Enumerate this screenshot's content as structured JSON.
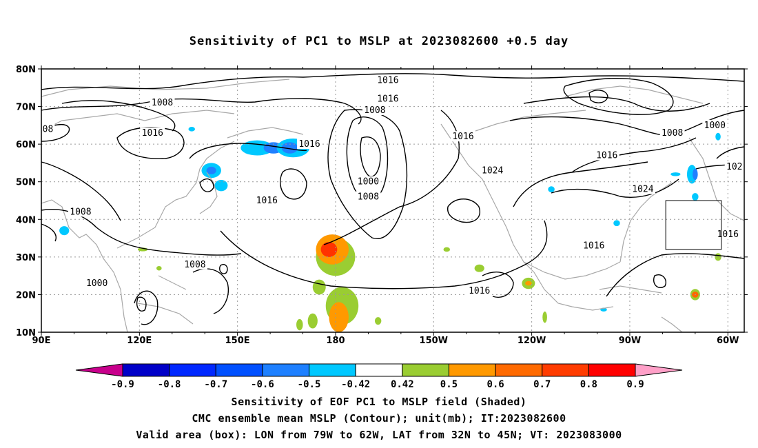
{
  "title": "Sensitivity of PC1 to MSLP at 2023082600 +0.5 day",
  "map": {
    "lon_range": [
      90,
      305
    ],
    "lat_range": [
      10,
      80
    ],
    "lat_ticks": [
      {
        "value": 80,
        "label": "80N"
      },
      {
        "value": 70,
        "label": "70N"
      },
      {
        "value": 60,
        "label": "60N"
      },
      {
        "value": 50,
        "label": "50N"
      },
      {
        "value": 40,
        "label": "40N"
      },
      {
        "value": 30,
        "label": "30N"
      },
      {
        "value": 20,
        "label": "20N"
      },
      {
        "value": 10,
        "label": "10N"
      }
    ],
    "lon_ticks": [
      {
        "value": 90,
        "label": "90E"
      },
      {
        "value": 120,
        "label": "120E"
      },
      {
        "value": 150,
        "label": "150E"
      },
      {
        "value": 180,
        "label": "180"
      },
      {
        "value": 210,
        "label": "150W"
      },
      {
        "value": 240,
        "label": "120W"
      },
      {
        "value": 270,
        "label": "90W"
      },
      {
        "value": 300,
        "label": "60W"
      }
    ],
    "valid_box": {
      "lon_west": 281,
      "lon_east": 298,
      "lat_south": 32,
      "lat_north": 45
    },
    "contour_labels": [
      {
        "text": "1016",
        "lon": 196,
        "lat": 77
      },
      {
        "text": "1016",
        "lon": 196,
        "lat": 72
      },
      {
        "text": "1008",
        "lon": 192,
        "lat": 69
      },
      {
        "text": "1008",
        "lon": 127,
        "lat": 71
      },
      {
        "text": "08",
        "lon": 92,
        "lat": 64
      },
      {
        "text": "1016",
        "lon": 124,
        "lat": 63
      },
      {
        "text": "1016",
        "lon": 172,
        "lat": 60
      },
      {
        "text": "1016",
        "lon": 219,
        "lat": 62
      },
      {
        "text": "1024",
        "lon": 228,
        "lat": 53
      },
      {
        "text": "1000",
        "lon": 190,
        "lat": 50
      },
      {
        "text": "1008",
        "lon": 190,
        "lat": 46
      },
      {
        "text": "1016",
        "lon": 159,
        "lat": 45
      },
      {
        "text": "1008",
        "lon": 102,
        "lat": 42
      },
      {
        "text": "1008",
        "lon": 137,
        "lat": 28
      },
      {
        "text": "1000",
        "lon": 107,
        "lat": 23
      },
      {
        "text": "1016",
        "lon": 224,
        "lat": 21
      },
      {
        "text": "1016",
        "lon": 259,
        "lat": 33
      },
      {
        "text": "1024",
        "lon": 274,
        "lat": 48
      },
      {
        "text": "1008",
        "lon": 283,
        "lat": 63
      },
      {
        "text": "1016",
        "lon": 263,
        "lat": 57
      },
      {
        "text": "1000",
        "lon": 296,
        "lat": 65
      },
      {
        "text": "1016",
        "lon": 300,
        "lat": 36
      },
      {
        "text": "102",
        "lon": 302,
        "lat": 54
      }
    ],
    "shaded_regions": [
      {
        "color": "#00c8ff",
        "lon": 156,
        "lat": 59,
        "rlon": 5,
        "rlat": 2
      },
      {
        "color": "#2080ff",
        "lon": 161,
        "lat": 59,
        "rlon": 3,
        "rlat": 1.5
      },
      {
        "color": "#00c8ff",
        "lon": 167,
        "lat": 59,
        "rlon": 5,
        "rlat": 2.5
      },
      {
        "color": "#2080ff",
        "lon": 166,
        "lat": 59,
        "rlon": 2.5,
        "rlat": 1.5
      },
      {
        "color": "#00c8ff",
        "lon": 142,
        "lat": 53,
        "rlon": 3,
        "rlat": 2
      },
      {
        "color": "#2080ff",
        "lon": 142,
        "lat": 53,
        "rlon": 1.5,
        "rlat": 1
      },
      {
        "color": "#00c8ff",
        "lon": 145,
        "lat": 49,
        "rlon": 2,
        "rlat": 1.5
      },
      {
        "color": "#00c8ff",
        "lon": 136,
        "lat": 64,
        "rlon": 1,
        "rlat": 0.6
      },
      {
        "color": "#00c8ff",
        "lon": 97,
        "lat": 37,
        "rlon": 1.5,
        "rlat": 1.2
      },
      {
        "color": "#9acd32",
        "lon": 180,
        "lat": 30,
        "rlon": 6,
        "rlat": 5
      },
      {
        "color": "#ff9900",
        "lon": 179,
        "lat": 32,
        "rlon": 5,
        "rlat": 4
      },
      {
        "color": "#ff3300",
        "lon": 178,
        "lat": 32,
        "rlon": 2.5,
        "rlat": 2
      },
      {
        "color": "#9acd32",
        "lon": 182,
        "lat": 17,
        "rlon": 5,
        "rlat": 5
      },
      {
        "color": "#ff9900",
        "lon": 181,
        "lat": 14,
        "rlon": 3,
        "rlat": 4
      },
      {
        "color": "#9acd32",
        "lon": 175,
        "lat": 22,
        "rlon": 2,
        "rlat": 2
      },
      {
        "color": "#9acd32",
        "lon": 173,
        "lat": 13,
        "rlon": 1.5,
        "rlat": 2
      },
      {
        "color": "#9acd32",
        "lon": 169,
        "lat": 12,
        "rlon": 1,
        "rlat": 1.5
      },
      {
        "color": "#9acd32",
        "lon": 193,
        "lat": 13,
        "rlon": 1,
        "rlat": 1
      },
      {
        "color": "#9acd32",
        "lon": 224,
        "lat": 27,
        "rlon": 1.5,
        "rlat": 1
      },
      {
        "color": "#9acd32",
        "lon": 214,
        "lat": 32,
        "rlon": 1,
        "rlat": 0.6
      },
      {
        "color": "#9acd32",
        "lon": 239,
        "lat": 23,
        "rlon": 2,
        "rlat": 1.5
      },
      {
        "color": "#ff9900",
        "lon": 239,
        "lat": 23,
        "rlon": 1,
        "rlat": 0.6
      },
      {
        "color": "#9acd32",
        "lon": 244,
        "lat": 14,
        "rlon": 0.7,
        "rlat": 1.5
      },
      {
        "color": "#00c8ff",
        "lon": 246,
        "lat": 48,
        "rlon": 1,
        "rlat": 0.8
      },
      {
        "color": "#00c8ff",
        "lon": 266,
        "lat": 39,
        "rlon": 1,
        "rlat": 0.8
      },
      {
        "color": "#00c8ff",
        "lon": 289,
        "lat": 52,
        "rlon": 1.5,
        "rlat": 2.5
      },
      {
        "color": "#2080ff",
        "lon": 290,
        "lat": 52,
        "rlon": 0.8,
        "rlat": 1.5
      },
      {
        "color": "#00c8ff",
        "lon": 290,
        "lat": 46,
        "rlon": 1,
        "rlat": 1
      },
      {
        "color": "#00c8ff",
        "lon": 284,
        "lat": 52,
        "rlon": 1.5,
        "rlat": 0.5
      },
      {
        "color": "#00c8ff",
        "lon": 297,
        "lat": 62,
        "rlon": 0.8,
        "rlat": 1
      },
      {
        "color": "#9acd32",
        "lon": 290,
        "lat": 20,
        "rlon": 1.5,
        "rlat": 1.5
      },
      {
        "color": "#ff6600",
        "lon": 290,
        "lat": 20,
        "rlon": 1,
        "rlat": 0.8
      },
      {
        "color": "#9acd32",
        "lon": 297,
        "lat": 30,
        "rlon": 1,
        "rlat": 1
      },
      {
        "color": "#9acd32",
        "lon": 121,
        "lat": 32,
        "rlon": 1.5,
        "rlat": 0.5
      },
      {
        "color": "#9acd32",
        "lon": 126,
        "lat": 27,
        "rlon": 0.8,
        "rlat": 0.6
      },
      {
        "color": "#00c8ff",
        "lon": 262,
        "lat": 16,
        "rlon": 1,
        "rlat": 0.5
      }
    ]
  },
  "colorbar": {
    "levels": [
      {
        "color": "#c8008c",
        "label": ""
      },
      {
        "color": "#0000c8",
        "label": "-0.9"
      },
      {
        "color": "#0028ff",
        "label": "-0.8"
      },
      {
        "color": "#0050ff",
        "label": "-0.7"
      },
      {
        "color": "#1e80ff",
        "label": "-0.6"
      },
      {
        "color": "#00c8ff",
        "label": "-0.5"
      },
      {
        "color": "#ffffff",
        "label": "-0.42"
      },
      {
        "color": "#9acd32",
        "label": "0.42"
      },
      {
        "color": "#ff9900",
        "label": "0.5"
      },
      {
        "color": "#ff6a00",
        "label": "0.6"
      },
      {
        "color": "#ff3c00",
        "label": "0.7"
      },
      {
        "color": "#ff0000",
        "label": "0.8"
      },
      {
        "color": "#ffa0c8",
        "label": "0.9"
      }
    ]
  },
  "captions": [
    "Sensitivity of EOF PC1 to MSLP field (Shaded)",
    "CMC ensemble mean MSLP (Contour); unit(mb); IT:2023082600",
    "Valid area (box): LON from 79W to 62W, LAT from 32N to 45N; VT: 2023083000"
  ]
}
